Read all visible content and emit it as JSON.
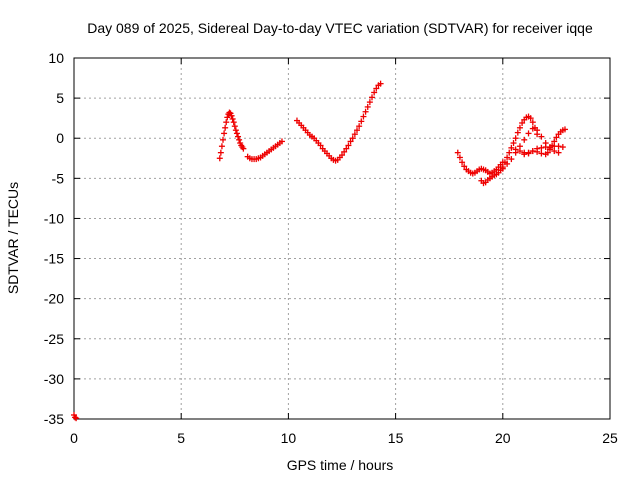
{
  "chart_data": {
    "type": "scatter",
    "title": "Day 089 of 2025, Sidereal Day-to-day VTEC variation (SDTVAR) for receiver iqqe",
    "xlabel": "GPS time / hours",
    "ylabel": "SDTVAR / TECUs",
    "xlim": [
      0,
      25
    ],
    "ylim": [
      -35,
      10
    ],
    "xticks": [
      "0",
      "5",
      "10",
      "15",
      "20",
      "25"
    ],
    "yticks": [
      "10",
      "5",
      "0",
      "-5",
      "-10",
      "-15",
      "-20",
      "-25",
      "-30",
      "-35"
    ],
    "grid": true,
    "marker": "plus",
    "color": "#ee0000",
    "series": [
      {
        "x": [
          0.0,
          0.05,
          0.1
        ],
        "y": [
          -34.5,
          -34.8,
          -34.9
        ]
      },
      {
        "x": [
          6.8,
          6.85,
          6.9,
          6.95,
          7.0,
          7.05,
          7.1,
          7.15,
          7.2,
          7.25,
          7.3,
          7.35,
          7.4,
          7.45,
          7.5,
          7.55,
          7.6,
          7.65,
          7.7,
          7.75,
          7.8,
          7.85,
          7.9
        ],
        "y": [
          -2.5,
          -1.8,
          -1.0,
          -0.2,
          0.6,
          1.3,
          2.0,
          2.6,
          3.0,
          3.2,
          3.1,
          2.8,
          2.4,
          2.0,
          1.5,
          1.0,
          0.6,
          0.2,
          -0.2,
          -0.6,
          -0.9,
          -1.1,
          -1.3
        ]
      },
      {
        "x": [
          8.1,
          8.2,
          8.3,
          8.4,
          8.5,
          8.6,
          8.7,
          8.8,
          8.9,
          9.0,
          9.1,
          9.2,
          9.3,
          9.4,
          9.5,
          9.6,
          9.7
        ],
        "y": [
          -2.3,
          -2.5,
          -2.6,
          -2.6,
          -2.6,
          -2.5,
          -2.4,
          -2.2,
          -2.0,
          -1.8,
          -1.6,
          -1.4,
          -1.2,
          -1.0,
          -0.8,
          -0.6,
          -0.4
        ]
      },
      {
        "x": [
          10.4,
          10.5,
          10.6,
          10.7,
          10.8,
          10.9,
          11.0,
          11.1,
          11.2,
          11.3,
          11.4,
          11.5,
          11.6,
          11.7,
          11.8,
          11.9,
          12.0,
          12.1,
          12.2,
          12.3,
          12.4,
          12.5,
          12.6,
          12.7,
          12.8,
          12.9,
          13.0,
          13.1,
          13.2,
          13.3,
          13.4,
          13.5,
          13.6,
          13.7,
          13.8,
          13.9,
          14.0,
          14.1,
          14.2,
          14.3
        ],
        "y": [
          2.2,
          1.9,
          1.6,
          1.3,
          1.0,
          0.7,
          0.4,
          0.2,
          0.0,
          -0.3,
          -0.6,
          -0.9,
          -1.3,
          -1.6,
          -1.9,
          -2.2,
          -2.5,
          -2.7,
          -2.8,
          -2.7,
          -2.4,
          -2.1,
          -1.7,
          -1.3,
          -0.9,
          -0.4,
          0.0,
          0.5,
          1.0,
          1.5,
          2.1,
          2.7,
          3.3,
          3.9,
          4.5,
          5.1,
          5.7,
          6.2,
          6.6,
          6.8
        ]
      },
      {
        "x": [
          17.9,
          18.0,
          18.1,
          18.2,
          18.3,
          18.4,
          18.5,
          18.6,
          18.7,
          18.8,
          18.9,
          19.0,
          19.1,
          19.2,
          19.3,
          19.4,
          19.5,
          19.6,
          19.7,
          19.8,
          19.9,
          20.0
        ],
        "y": [
          -1.8,
          -2.4,
          -3.0,
          -3.5,
          -3.9,
          -4.1,
          -4.3,
          -4.4,
          -4.3,
          -4.1,
          -3.9,
          -3.8,
          -3.9,
          -4.0,
          -4.2,
          -4.4,
          -4.3,
          -4.1,
          -3.9,
          -3.6,
          -3.3,
          -3.0
        ]
      },
      {
        "x": [
          19.0,
          19.1,
          19.2,
          19.3,
          19.4,
          19.5,
          19.6,
          19.7,
          19.8,
          19.9,
          20.0,
          20.1,
          20.2,
          20.3,
          20.4,
          20.5,
          20.6,
          20.7,
          20.8,
          20.9,
          21.0,
          21.1,
          21.2,
          21.3,
          21.4,
          21.5,
          21.6
        ],
        "y": [
          -5.3,
          -5.6,
          -5.5,
          -5.2,
          -5.0,
          -4.8,
          -4.6,
          -4.5,
          -4.3,
          -4.0,
          -3.6,
          -3.0,
          -2.4,
          -1.8,
          -1.2,
          -0.6,
          0.0,
          0.7,
          1.3,
          1.9,
          2.3,
          2.6,
          2.7,
          2.5,
          2.0,
          1.3,
          0.5
        ]
      },
      {
        "x": [
          20.0,
          20.2,
          20.4,
          20.6,
          20.8,
          21.0,
          21.2,
          21.4,
          21.6,
          21.8,
          22.0,
          22.2,
          22.4,
          22.6
        ],
        "y": [
          -3.8,
          -3.2,
          -2.6,
          -1.8,
          -1.0,
          -0.2,
          0.6,
          1.2,
          1.0,
          0.2,
          -0.6,
          -1.2,
          -1.6,
          -1.8
        ]
      },
      {
        "x": [
          21.0,
          21.2,
          21.4,
          21.6,
          21.8,
          22.0,
          22.1,
          22.2,
          22.3,
          22.4,
          22.5,
          22.6,
          22.7,
          22.8,
          22.9
        ],
        "y": [
          -2.0,
          -1.8,
          -1.6,
          -1.7,
          -1.9,
          -2.0,
          -1.8,
          -1.4,
          -0.9,
          -0.4,
          0.1,
          0.5,
          0.8,
          1.0,
          1.1
        ]
      },
      {
        "x": [
          20.6,
          20.8,
          21.0,
          21.2,
          21.4,
          21.6,
          21.8,
          22.0,
          22.2,
          22.4,
          22.6,
          22.8
        ],
        "y": [
          -1.4,
          -1.6,
          -1.8,
          -1.9,
          -1.6,
          -1.3,
          -1.2,
          -1.1,
          -1.1,
          -1.0,
          -1.0,
          -1.1
        ]
      }
    ]
  }
}
